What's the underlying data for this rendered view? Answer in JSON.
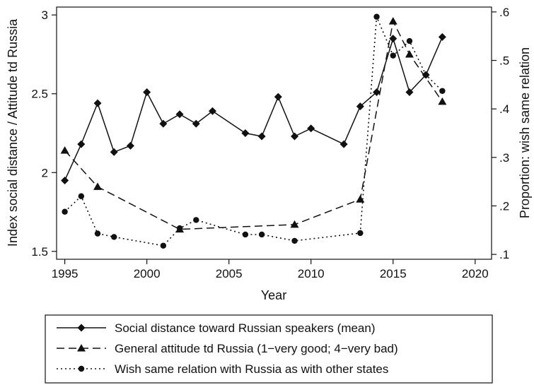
{
  "chart_data": {
    "type": "line",
    "xlabel": "Year",
    "ylabel_left": "Index social distance / Attitude td Russia",
    "ylabel_right": "Proportion: wish same relation",
    "xlim": [
      1994.5,
      2021
    ],
    "ylim_left": [
      1.45,
      3.05
    ],
    "ylim_right": [
      0.09,
      0.61
    ],
    "x_ticks": [
      1995,
      2000,
      2005,
      2010,
      2015,
      2020
    ],
    "x_tick_labels": [
      "1995",
      "2000",
      "2005",
      "2010",
      "2015",
      "2020"
    ],
    "y_left_ticks": [
      1.5,
      2,
      2.5,
      3
    ],
    "y_left_tick_labels": [
      "1.5",
      "2",
      "2.5",
      "3"
    ],
    "y_right_ticks": [
      0.1,
      0.2,
      0.3,
      0.4,
      0.5,
      0.6
    ],
    "y_right_tick_labels": [
      ".1",
      ".2",
      ".3",
      ".4",
      ".5",
      ".6"
    ],
    "grid": false,
    "legend_position": "bottom",
    "series": [
      {
        "name": "Social distance toward Russian speakers (mean)",
        "axis": "left",
        "line_style": "solid",
        "marker": "diamond",
        "x": [
          1995,
          1996,
          1997,
          1998,
          1999,
          2000,
          2001,
          2002,
          2003,
          2004,
          2006,
          2007,
          2008,
          2009,
          2010,
          2012,
          2013,
          2014,
          2015,
          2016,
          2017,
          2018
        ],
        "y": [
          1.95,
          2.18,
          2.44,
          2.13,
          2.17,
          2.51,
          2.31,
          2.37,
          2.31,
          2.39,
          2.25,
          2.23,
          2.48,
          2.23,
          2.28,
          2.18,
          2.42,
          2.51,
          2.85,
          2.51,
          2.62,
          2.86
        ]
      },
      {
        "name": "General attitude td Russia (1−very good; 4−very bad)",
        "axis": "left",
        "line_style": "dashed",
        "marker": "triangle",
        "x": [
          1995,
          1997,
          2002,
          2009,
          2013,
          2015,
          2016,
          2018
        ],
        "y": [
          2.14,
          1.91,
          1.64,
          1.67,
          1.83,
          2.96,
          2.75,
          2.45
        ]
      },
      {
        "name": "Wish same relation with Russia as with other states",
        "axis": "right",
        "line_style": "dotted",
        "marker": "circle",
        "x": [
          1995,
          1996,
          1997,
          1998,
          2001,
          2002,
          2003,
          2006,
          2007,
          2009,
          2013,
          2014,
          2015,
          2016,
          2017,
          2018
        ],
        "y": [
          0.188,
          0.22,
          0.143,
          0.136,
          0.118,
          0.154,
          0.171,
          0.141,
          0.141,
          0.128,
          0.144,
          0.59,
          0.51,
          0.54,
          0.47,
          0.437
        ]
      }
    ]
  }
}
